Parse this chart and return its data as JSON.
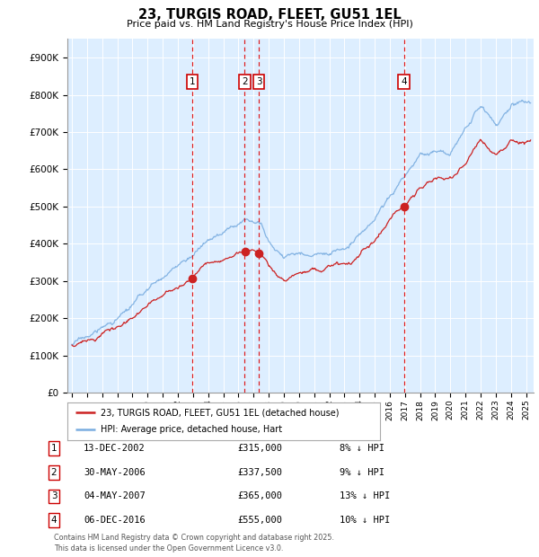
{
  "title": "23, TURGIS ROAD, FLEET, GU51 1EL",
  "subtitle": "Price paid vs. HM Land Registry's House Price Index (HPI)",
  "ylabel_ticks": [
    "£0",
    "£100K",
    "£200K",
    "£300K",
    "£400K",
    "£500K",
    "£600K",
    "£700K",
    "£800K",
    "£900K"
  ],
  "ytick_values": [
    0,
    100000,
    200000,
    300000,
    400000,
    500000,
    600000,
    700000,
    800000,
    900000
  ],
  "ylim": [
    0,
    950000
  ],
  "xlim_start": 1994.7,
  "xlim_end": 2025.5,
  "hpi_color": "#7aade0",
  "price_color": "#cc2222",
  "plot_bg": "#ddeeff",
  "grid_color": "#ffffff",
  "transactions": [
    {
      "id": 1,
      "date": "13-DEC-2002",
      "year": 2002.95,
      "price": 315000,
      "price_str": "£315,000",
      "pct": "8%",
      "dir": "↓"
    },
    {
      "id": 2,
      "date": "30-MAY-2006",
      "year": 2006.41,
      "price": 337500,
      "price_str": "£337,500",
      "pct": "9%",
      "dir": "↓"
    },
    {
      "id": 3,
      "date": "04-MAY-2007",
      "year": 2007.34,
      "price": 365000,
      "price_str": "£365,000",
      "pct": "13%",
      "dir": "↓"
    },
    {
      "id": 4,
      "date": "06-DEC-2016",
      "year": 2016.93,
      "price": 555000,
      "price_str": "£555,000",
      "pct": "10%",
      "dir": "↓"
    }
  ],
  "legend_line1": "23, TURGIS ROAD, FLEET, GU51 1EL (detached house)",
  "legend_line2": "HPI: Average price, detached house, Hart",
  "footer": "Contains HM Land Registry data © Crown copyright and database right 2025.\nThis data is licensed under the Open Government Licence v3.0.",
  "hpi_base": [
    1995,
    1996,
    1997,
    1998,
    1999,
    2000,
    2001,
    2002,
    2003,
    2004,
    2005,
    2006,
    2007,
    2007.5,
    2008,
    2009,
    2010,
    2011,
    2012,
    2013,
    2014,
    2015,
    2016,
    2017,
    2018,
    2019,
    2020,
    2021,
    2022,
    2023,
    2024,
    2025.3
  ],
  "hpi_vals": [
    130000,
    148000,
    170000,
    195000,
    220000,
    255000,
    290000,
    315000,
    350000,
    385000,
    400000,
    430000,
    450000,
    455000,
    400000,
    360000,
    380000,
    375000,
    370000,
    385000,
    410000,
    450000,
    510000,
    570000,
    610000,
    620000,
    610000,
    670000,
    720000,
    680000,
    720000,
    740000
  ],
  "price_base": [
    1995,
    1996,
    1997,
    1998,
    1999,
    2000,
    2001,
    2002,
    2003,
    2004,
    2005,
    2006,
    2007,
    2007.5,
    2008,
    2009,
    2010,
    2011,
    2012,
    2013,
    2014,
    2015,
    2016,
    2017,
    2018,
    2019,
    2020,
    2021,
    2022,
    2023,
    2024,
    2025.3
  ],
  "price_vals": [
    128000,
    142000,
    163000,
    185000,
    208000,
    240000,
    270000,
    295000,
    320000,
    350000,
    365000,
    375000,
    390000,
    380000,
    340000,
    305000,
    330000,
    330000,
    340000,
    355000,
    380000,
    415000,
    465000,
    510000,
    545000,
    560000,
    565000,
    605000,
    660000,
    625000,
    660000,
    665000
  ]
}
